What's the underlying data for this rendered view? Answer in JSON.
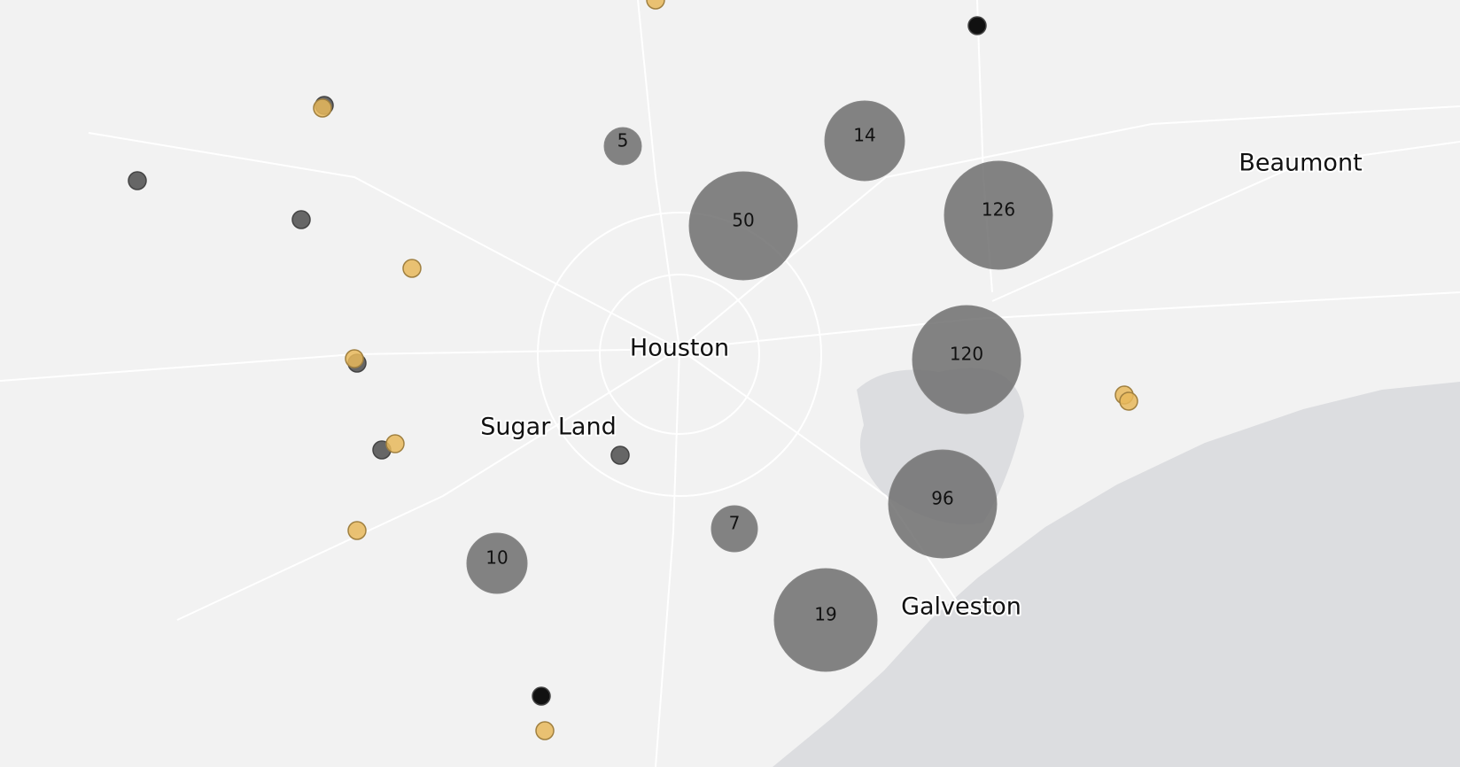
{
  "cities": [
    {
      "label": "Beaumont"
    },
    {
      "label": "Houston"
    },
    {
      "label": "Sugar Land"
    },
    {
      "label": "Galveston"
    }
  ],
  "clusters": [
    {
      "count": 5
    },
    {
      "count": 14
    },
    {
      "count": 50
    },
    {
      "count": 126
    },
    {
      "count": 120
    },
    {
      "count": 96
    },
    {
      "count": 7
    },
    {
      "count": 10
    },
    {
      "count": 19
    }
  ]
}
